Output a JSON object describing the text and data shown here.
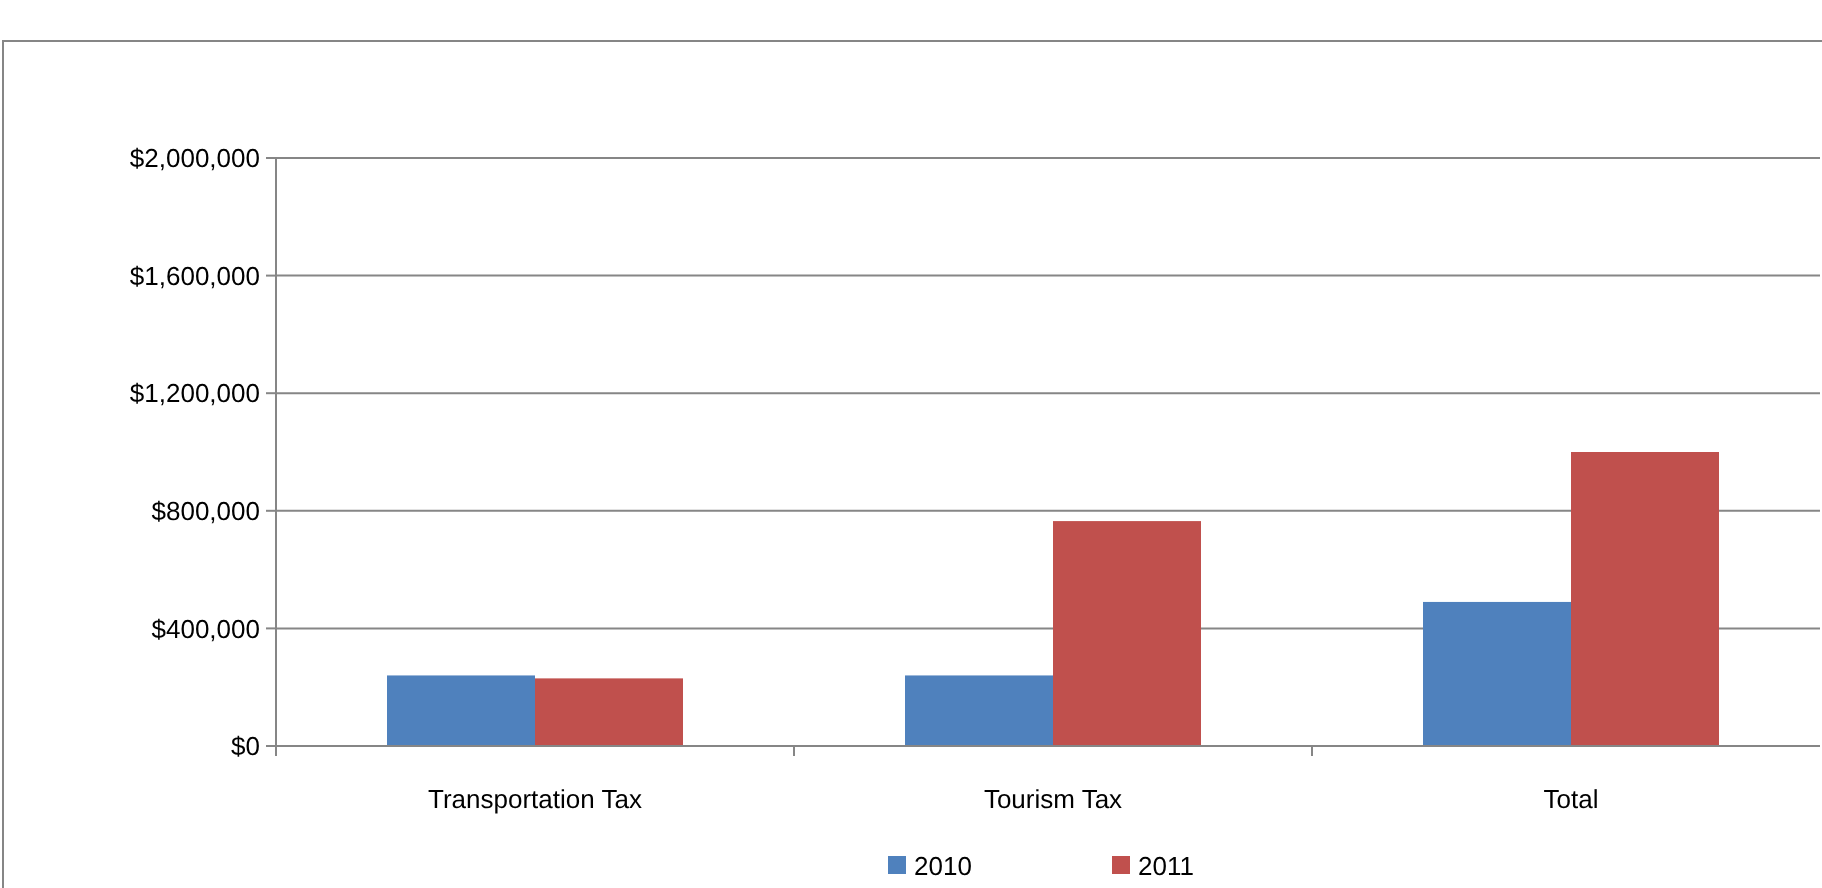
{
  "chart_data": {
    "type": "bar",
    "categories": [
      "Transportation Tax",
      "Tourism Tax",
      "Total"
    ],
    "series": [
      {
        "name": "2010",
        "color": "#4f81bd",
        "values": [
          240000,
          240000,
          490000
        ]
      },
      {
        "name": "2011",
        "color": "#c0504d",
        "values": [
          230000,
          765000,
          1000000
        ]
      }
    ],
    "ylim": [
      0,
      2000000
    ],
    "yticks": [
      {
        "value": 0,
        "label": "$0"
      },
      {
        "value": 400000,
        "label": "$400,000"
      },
      {
        "value": 800000,
        "label": "$800,000"
      },
      {
        "value": 1200000,
        "label": "$1,200,000"
      },
      {
        "value": 1600000,
        "label": "$1,600,000"
      },
      {
        "value": 2000000,
        "label": "$2,000,000"
      }
    ],
    "grid": "y",
    "legend": "bottom"
  }
}
